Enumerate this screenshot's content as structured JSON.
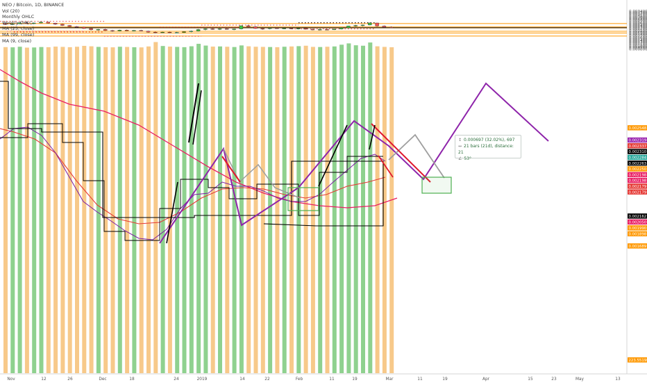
{
  "legend": {
    "title": "NEO / Bitcoin, 1D, BINANCE",
    "items": [
      "Vol (20)",
      "Monthly OHLC",
      "Weekly OHLC",
      "MA (25, close)",
      "MA (99, close)",
      "MA (9, close)"
    ]
  },
  "measure": {
    "line1": "0.000697 (32.02%), 697",
    "line2": "21 bars (21d), distance: 21",
    "line3": "53°"
  },
  "colors": {
    "up": "#26a69a",
    "up_fill": "#3fbf3f",
    "down": "#ef5350",
    "vol_up": "#8fd18f",
    "vol_down": "#f7c98a",
    "ma25": "#e53935",
    "ma99": "#e91e63",
    "ma9": "#7b1fa2",
    "monthly": "#000000",
    "weekly": "#000000",
    "orange_line": "#ff9800",
    "purple": "#8e24aa",
    "red_line": "#e0182d",
    "grey_line": "#9e9e9e",
    "green_box": "#4caf50"
  },
  "chart_data": {
    "type": "candlestick",
    "symbol": "NEO / Bitcoin",
    "interval": "1D",
    "exchange": "BINANCE",
    "y_axis_ticks": [
      "0.003400",
      "0.003300",
      "0.003200",
      "0.003100",
      "0.003000",
      "0.002900",
      "0.002800",
      "0.002700",
      "0.002600",
      "0.002500",
      "0.002400",
      "0.002300",
      "0.002200",
      "0.002100",
      "0.002000",
      "0.001900",
      "0.001800",
      "0.001700",
      "0.001600",
      "0.001500",
      "0.001400",
      "0.001300",
      "0.001200",
      "0.001100",
      "0.001000",
      "0.000900",
      "0.000800"
    ],
    "x_axis_ticks": [
      "Nov",
      "12",
      "26",
      "Dec",
      "18",
      "24",
      "2019",
      "14",
      "22",
      "Feb",
      "11",
      "19",
      "Mar",
      "11",
      "19",
      "Apr",
      "15",
      "23",
      "May",
      "13"
    ],
    "price_tags": [
      {
        "text": "0.002548",
        "color": "#ff9800"
      },
      {
        "text": "0.002435",
        "color": "#26a69a"
      },
      {
        "text": "0.002319",
        "color": "#9c27b0"
      },
      {
        "text": "0.002337",
        "color": "#e53935"
      },
      {
        "text": "0.002310",
        "color": "#000000"
      },
      {
        "text": "0.002284",
        "color": "#26a69a"
      },
      {
        "text": "0.002263",
        "color": "#000000"
      },
      {
        "text": "0.002250",
        "color": "#ff9800"
      },
      {
        "text": "0.002198",
        "color": "#e91e63"
      },
      {
        "text": "0.002198",
        "color": "#e91e63"
      },
      {
        "text": "0.002179",
        "color": "#e53935"
      },
      {
        "text": "0.002179",
        "color": "#e53935"
      },
      {
        "text": "0.002162",
        "color": "#000000"
      },
      {
        "text": "0.002050",
        "color": "#e91e63"
      },
      {
        "text": "0.001990",
        "color": "#ff9800"
      },
      {
        "text": "0.001898",
        "color": "#ff9800"
      },
      {
        "text": "0.001689",
        "color": "#ff9800"
      },
      {
        "text": "223.5519K",
        "color": "#ff9800"
      }
    ],
    "horizontal_levels": [
      0.002548,
      0.002319,
      0.00225,
      0.00202,
      0.001898,
      0.001689
    ],
    "candles": [
      [
        0.00256,
        0.00261,
        0.00245,
        0.00248
      ],
      [
        0.00248,
        0.00256,
        0.00244,
        0.00253
      ],
      [
        0.00253,
        0.00264,
        0.0025,
        0.0026
      ],
      [
        0.0026,
        0.00268,
        0.00254,
        0.00256
      ],
      [
        0.00256,
        0.00262,
        0.0025,
        0.00259
      ],
      [
        0.00259,
        0.0027,
        0.00256,
        0.00265
      ],
      [
        0.00265,
        0.00266,
        0.00255,
        0.00258
      ],
      [
        0.00258,
        0.0026,
        0.00246,
        0.0025
      ],
      [
        0.0025,
        0.00254,
        0.00238,
        0.00242
      ],
      [
        0.00242,
        0.00245,
        0.00231,
        0.00234
      ],
      [
        0.00234,
        0.00238,
        0.00226,
        0.0023
      ],
      [
        0.0023,
        0.00233,
        0.00218,
        0.00221
      ],
      [
        0.00221,
        0.00225,
        0.00208,
        0.00212
      ],
      [
        0.00212,
        0.00218,
        0.00206,
        0.00215
      ],
      [
        0.00215,
        0.0022,
        0.00204,
        0.00207
      ],
      [
        0.00207,
        0.00212,
        0.00198,
        0.00204
      ],
      [
        0.00204,
        0.00213,
        0.00201,
        0.0021
      ],
      [
        0.0021,
        0.00214,
        0.00203,
        0.00206
      ],
      [
        0.00206,
        0.00211,
        0.002,
        0.00208
      ],
      [
        0.00208,
        0.00212,
        0.00201,
        0.00203
      ],
      [
        0.00203,
        0.00206,
        0.00193,
        0.00196
      ],
      [
        0.00196,
        0.002,
        0.00188,
        0.00192
      ],
      [
        0.00192,
        0.00199,
        0.0019,
        0.00196
      ],
      [
        0.00196,
        0.00199,
        0.00189,
        0.00191
      ],
      [
        0.00191,
        0.00198,
        0.00188,
        0.00194
      ],
      [
        0.00194,
        0.00202,
        0.0019,
        0.00199
      ],
      [
        0.00199,
        0.00207,
        0.00195,
        0.00203
      ],
      [
        0.00203,
        0.00218,
        0.002,
        0.00214
      ],
      [
        0.00214,
        0.00222,
        0.00208,
        0.00219
      ],
      [
        0.00219,
        0.00225,
        0.00212,
        0.00216
      ],
      [
        0.00216,
        0.00223,
        0.00211,
        0.0022
      ],
      [
        0.0022,
        0.00224,
        0.00213,
        0.00215
      ],
      [
        0.00215,
        0.0022,
        0.00209,
        0.00218
      ],
      [
        0.00218,
        0.00242,
        0.00215,
        0.0024
      ],
      [
        0.0024,
        0.00246,
        0.0023,
        0.00233
      ],
      [
        0.00233,
        0.00238,
        0.00218,
        0.00221
      ],
      [
        0.00221,
        0.00225,
        0.00212,
        0.0022
      ],
      [
        0.0022,
        0.00226,
        0.00215,
        0.00224
      ],
      [
        0.00224,
        0.00229,
        0.00218,
        0.00221
      ],
      [
        0.00221,
        0.00226,
        0.00216,
        0.00223
      ],
      [
        0.00223,
        0.00228,
        0.00217,
        0.00219
      ],
      [
        0.00219,
        0.00224,
        0.00215,
        0.00222
      ],
      [
        0.00222,
        0.00225,
        0.00213,
        0.00216
      ],
      [
        0.00216,
        0.0022,
        0.00209,
        0.00212
      ],
      [
        0.00212,
        0.00218,
        0.00208,
        0.00215
      ],
      [
        0.00215,
        0.00219,
        0.0021,
        0.00213
      ],
      [
        0.00213,
        0.0022,
        0.00211,
        0.00217
      ],
      [
        0.00217,
        0.00229,
        0.00215,
        0.00226
      ],
      [
        0.00226,
        0.0024,
        0.00223,
        0.00238
      ],
      [
        0.00238,
        0.00246,
        0.00233,
        0.00242
      ],
      [
        0.00242,
        0.00248,
        0.00235,
        0.00245
      ],
      [
        0.00245,
        0.00262,
        0.00243,
        0.00259
      ],
      [
        0.00259,
        0.0026,
        0.00233,
        0.00238
      ],
      [
        0.00238,
        0.00242,
        0.00226,
        0.0023
      ],
      [
        0.0023,
        0.00236,
        0.00224,
        0.00226
      ]
    ],
    "volumes": [
      0.000935,
      0.00092,
      0.00096,
      0.0009,
      0.00091,
      0.00094,
      0.00093,
      0.00097,
      0.00095,
      0.00093,
      0.00096,
      0.00102,
      0.00099,
      0.00095,
      0.00093,
      0.00092,
      0.00096,
      0.000945,
      0.000925,
      0.000915,
      0.00098,
      0.00128,
      0.00101,
      0.00097,
      0.00095,
      0.00093,
      0.00099,
      0.00116,
      0.00104,
      0.00097,
      0.00098,
      0.00096,
      0.00094,
      0.00105,
      0.00099,
      0.00096,
      0.00095,
      0.00094,
      0.00093,
      0.00096,
      0.00098,
      0.001,
      0.00103,
      0.00095,
      0.00094,
      0.00096,
      0.00098,
      0.0011,
      0.00119,
      0.00106,
      0.00103,
      0.00125,
      0.00099,
      0.00095,
      0.000925
    ]
  }
}
